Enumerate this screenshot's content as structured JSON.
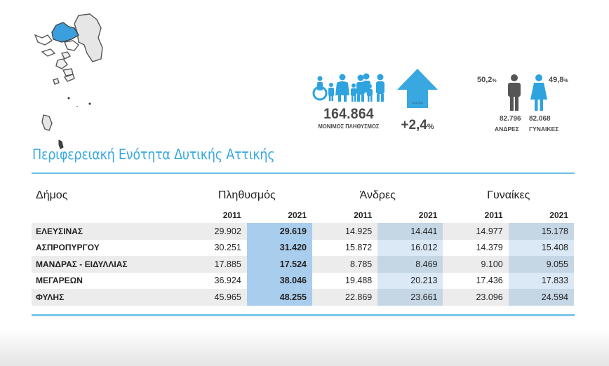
{
  "header": {
    "population_value": "164.864",
    "population_label": "ΜΟΝΙΜΟΣ ΠΛΗΘΥΣΜΟΣ",
    "change_arrow_caption": "2021/2011",
    "change_value": "+2,4",
    "change_unit": "%",
    "men_pct": "50,2",
    "women_pct": "49,8",
    "pct_unit": "%",
    "men_count": "82.796",
    "women_count": "82.068",
    "men_label": "ΑΝΔΡΕΣ",
    "women_label": "ΓΥΝΑΙΚΕΣ"
  },
  "title": "Περιφερειακή Ενότητα Δυτικής Αττικής",
  "table": {
    "col_municipality": "Δήμος",
    "group_population": "Πληθυσμός",
    "group_men": "Άνδρες",
    "group_women": "Γυναίκες",
    "years": [
      "2011",
      "2021",
      "2011",
      "2021",
      "2011",
      "2021"
    ],
    "rows": [
      {
        "name": "ΕΛΕΥΣΙΝΑΣ",
        "pop2011": "29.902",
        "pop2021": "29.619",
        "men2011": "14.925",
        "men2021": "14.441",
        "women2011": "14.977",
        "women2021": "15.178"
      },
      {
        "name": "ΑΣΠΡΟΠΥΡΓΟΥ",
        "pop2011": "30.251",
        "pop2021": "31.420",
        "men2011": "15.872",
        "men2021": "16.012",
        "women2011": "14.379",
        "women2021": "15.408"
      },
      {
        "name": "ΜΑΝΔΡΑΣ - ΕΙΔΥΛΛΙΑΣ",
        "pop2011": "17.885",
        "pop2021": "17.524",
        "men2011": "8.785",
        "men2021": "8.469",
        "women2011": "9.100",
        "women2021": "9.055"
      },
      {
        "name": "ΜΕΓΑΡΕΩΝ",
        "pop2011": "36.924",
        "pop2021": "38.046",
        "men2011": "19.488",
        "men2021": "20.213",
        "women2011": "17.436",
        "women2021": "17.833"
      },
      {
        "name": "ΦΥΛΗΣ",
        "pop2011": "45.965",
        "pop2021": "48.255",
        "men2011": "22.869",
        "men2021": "23.661",
        "women2011": "23.096",
        "women2021": "24.594"
      }
    ]
  },
  "colors": {
    "accent": "#3aa8e0",
    "highlight_region": "#3a9fdc",
    "male_icon": "#555555",
    "female_icon": "#2ea3df",
    "pop2021_column": "#a9cdec"
  },
  "icons": {
    "map": "attica-map-icon",
    "people": "people-group-icon",
    "arrow": "arrow-up-icon",
    "male": "male-figure-icon",
    "female": "female-figure-icon"
  }
}
